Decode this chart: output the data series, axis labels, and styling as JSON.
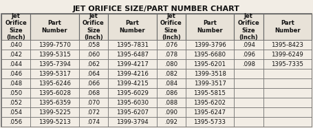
{
  "title": "JET ORIFICE SIZE/PART NUMBER CHART",
  "headers": [
    "Jet\nOrifice\nSize\n(Inch)",
    "Part\nNumber",
    "Jet\nOrifice\nSize\n(Inch)",
    "Part\nNumber",
    "Jet\nOrifice\nSize\n(Inch)",
    "Part\nNumber",
    "Jet\nOrifice\nSize\n(Inch)",
    "Part\nNumber"
  ],
  "rows": [
    [
      ".040",
      "1399-7570",
      ".058",
      "1395-7831",
      ".076",
      "1399-3796",
      ".094",
      "1395-8423"
    ],
    [
      ".042",
      "1399-5315",
      ".060",
      "1395-6487",
      ".078",
      "1395-6680",
      ".096",
      "1399-6249"
    ],
    [
      ".044",
      "1395-7394",
      ".062",
      "1399-4217",
      ".080",
      "1395-6201",
      ".098",
      "1395-7335"
    ],
    [
      ".046",
      "1399-5317",
      ".064",
      "1399-4216",
      ".082",
      "1399-3518",
      "",
      ""
    ],
    [
      ".048",
      "1395-6246",
      ".066",
      "1399-4215",
      ".084",
      "1399-3517",
      "",
      ""
    ],
    [
      ".050",
      "1395-6028",
      ".068",
      "1395-6029",
      ".086",
      "1395-5815",
      "",
      ""
    ],
    [
      ".052",
      "1395-6359",
      ".070",
      "1395-6030",
      ".088",
      "1395-6202",
      "",
      ""
    ],
    [
      ".054",
      "1399-5225",
      ".072",
      "1395-6207",
      ".090",
      "1395-6247",
      "",
      ""
    ],
    [
      ".056",
      "1399-5213",
      ".074",
      "1399-3794",
      ".092",
      "1395-5733",
      "",
      ""
    ]
  ],
  "col_widths_rel": [
    0.75,
    1.25,
    0.75,
    1.25,
    0.75,
    1.25,
    0.75,
    1.25
  ],
  "bg_color": "#f2ede5",
  "header_bg": "#e8e2d8",
  "border_color": "#666666",
  "text_color": "#111111",
  "title_fontsize": 8.0,
  "header_fontsize": 6.0,
  "cell_fontsize": 6.2
}
